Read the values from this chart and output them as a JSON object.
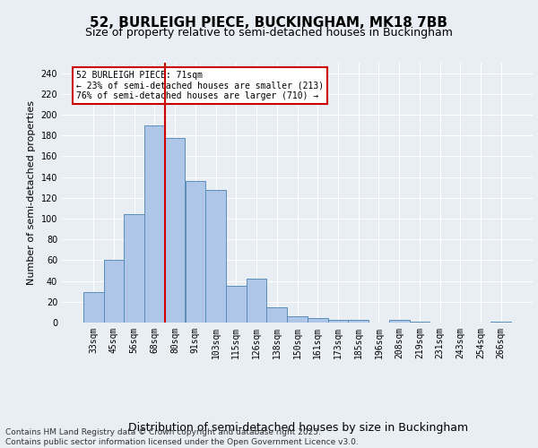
{
  "title": "52, BURLEIGH PIECE, BUCKINGHAM, MK18 7BB",
  "subtitle": "Size of property relative to semi-detached houses in Buckingham",
  "xlabel": "Distribution of semi-detached houses by size in Buckingham",
  "ylabel": "Number of semi-detached properties",
  "categories": [
    "33sqm",
    "45sqm",
    "56sqm",
    "68sqm",
    "80sqm",
    "91sqm",
    "103sqm",
    "115sqm",
    "126sqm",
    "138sqm",
    "150sqm",
    "161sqm",
    "173sqm",
    "185sqm",
    "196sqm",
    "208sqm",
    "219sqm",
    "231sqm",
    "243sqm",
    "254sqm",
    "266sqm"
  ],
  "values": [
    29,
    60,
    104,
    190,
    178,
    136,
    128,
    35,
    42,
    15,
    6,
    4,
    3,
    3,
    0,
    3,
    1,
    0,
    0,
    0,
    1
  ],
  "bar_color": "#aec6e8",
  "bar_edge_color": "#5b8db8",
  "background_color": "#e8eef4",
  "grid_color": "#ffffff",
  "vline_color": "#cc0000",
  "vline_x": 3.5,
  "annotation_text": "52 BURLEIGH PIECE: 71sqm\n← 23% of semi-detached houses are smaller (213)\n76% of semi-detached houses are larger (710) →",
  "annotation_box_color": "#ffffff",
  "annotation_box_edge": "#cc0000",
  "footer": "Contains HM Land Registry data © Crown copyright and database right 2025.\nContains public sector information licensed under the Open Government Licence v3.0.",
  "ylim": [
    0,
    250
  ],
  "yticks": [
    0,
    20,
    40,
    60,
    80,
    100,
    120,
    140,
    160,
    180,
    200,
    220,
    240
  ],
  "title_fontsize": 11,
  "subtitle_fontsize": 9,
  "xlabel_fontsize": 9,
  "ylabel_fontsize": 8,
  "tick_fontsize": 7,
  "footer_fontsize": 6.5
}
